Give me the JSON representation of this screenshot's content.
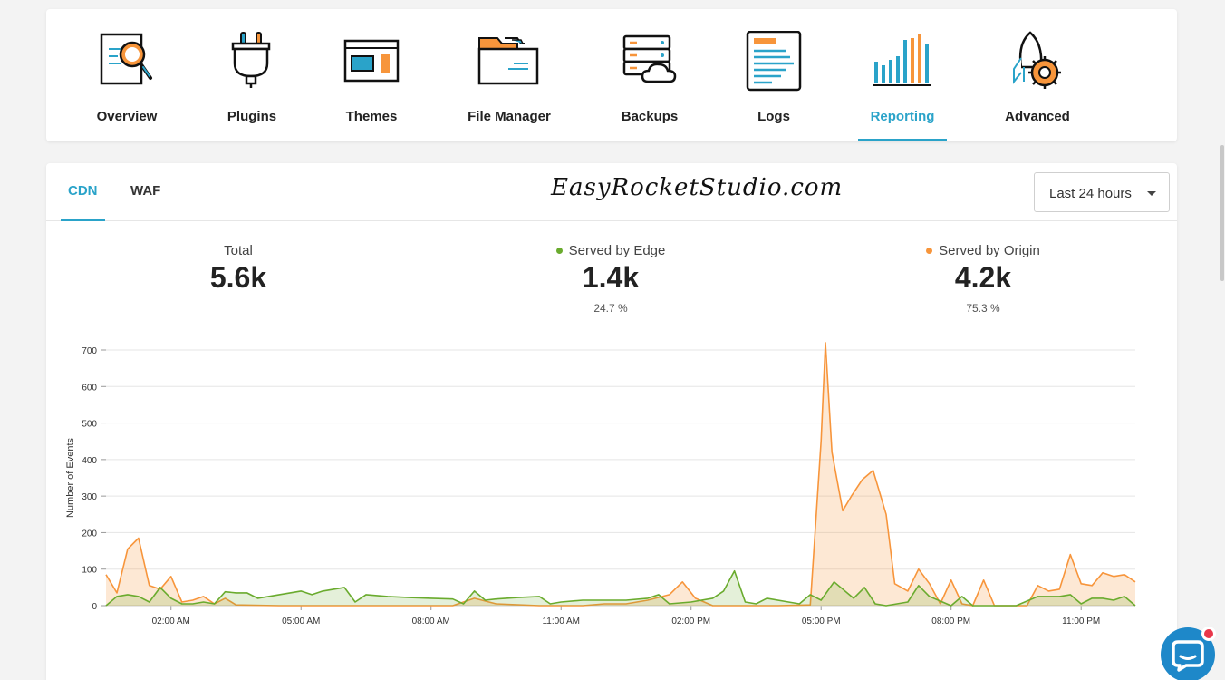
{
  "nav": {
    "items": [
      {
        "label": "Overview",
        "icon": "overview-icon"
      },
      {
        "label": "Plugins",
        "icon": "plugin-icon"
      },
      {
        "label": "Themes",
        "icon": "themes-icon"
      },
      {
        "label": "File Manager",
        "icon": "folder-icon"
      },
      {
        "label": "Backups",
        "icon": "backup-icon"
      },
      {
        "label": "Logs",
        "icon": "logs-icon"
      },
      {
        "label": "Reporting",
        "icon": "reporting-icon"
      },
      {
        "label": "Advanced",
        "icon": "rocket-gear-icon"
      }
    ],
    "active": "Reporting"
  },
  "tabs": [
    {
      "label": "CDN"
    },
    {
      "label": "WAF"
    }
  ],
  "active_tab": "CDN",
  "watermark": "EasyRocketStudio.com",
  "range_select": {
    "value": "Last 24 hours"
  },
  "stats": {
    "total": {
      "label": "Total",
      "value": "5.6k"
    },
    "edge": {
      "label": "Served by Edge",
      "value": "1.4k",
      "pct": "24.7 %"
    },
    "origin": {
      "label": "Served by Origin",
      "value": "4.2k",
      "pct": "75.3 %"
    }
  },
  "colors": {
    "accent": "#2aa3c9",
    "edge": "#6aab2e",
    "origin": "#f7953b"
  },
  "chart_data": {
    "type": "area",
    "ylabel": "Number of Events",
    "ylim": [
      0,
      700
    ],
    "yticks": [
      0,
      100,
      200,
      300,
      400,
      500,
      600,
      700
    ],
    "xlim": [
      0,
      23.75
    ],
    "xticks": [
      {
        "x": 1.5,
        "label": "02:00 AM"
      },
      {
        "x": 4.5,
        "label": "05:00 AM"
      },
      {
        "x": 7.5,
        "label": "08:00 AM"
      },
      {
        "x": 10.5,
        "label": "11:00 AM"
      },
      {
        "x": 13.5,
        "label": "02:00 PM"
      },
      {
        "x": 16.5,
        "label": "05:00 PM"
      },
      {
        "x": 19.5,
        "label": "08:00 PM"
      },
      {
        "x": 22.5,
        "label": "11:00 PM"
      }
    ],
    "grid": true,
    "series": [
      {
        "name": "Served by Origin",
        "color": "#f7953b",
        "points": [
          [
            0,
            85
          ],
          [
            0.25,
            35
          ],
          [
            0.5,
            155
          ],
          [
            0.75,
            185
          ],
          [
            1.0,
            55
          ],
          [
            1.25,
            45
          ],
          [
            1.5,
            80
          ],
          [
            1.75,
            10
          ],
          [
            2.0,
            15
          ],
          [
            2.25,
            25
          ],
          [
            2.5,
            5
          ],
          [
            2.75,
            20
          ],
          [
            3.0,
            2
          ],
          [
            4,
            0
          ],
          [
            5,
            0
          ],
          [
            6,
            0
          ],
          [
            7,
            0
          ],
          [
            8,
            0
          ],
          [
            8.5,
            20
          ],
          [
            9,
            5
          ],
          [
            10,
            0
          ],
          [
            11,
            0
          ],
          [
            11.5,
            5
          ],
          [
            12,
            5
          ],
          [
            12.5,
            15
          ],
          [
            13,
            30
          ],
          [
            13.3,
            65
          ],
          [
            13.6,
            20
          ],
          [
            14,
            0
          ],
          [
            15,
            0
          ],
          [
            15.5,
            0
          ],
          [
            16.25,
            2
          ],
          [
            16.5,
            450
          ],
          [
            16.6,
            720
          ],
          [
            16.75,
            420
          ],
          [
            17.0,
            260
          ],
          [
            17.2,
            300
          ],
          [
            17.45,
            345
          ],
          [
            17.7,
            370
          ],
          [
            18.0,
            250
          ],
          [
            18.2,
            60
          ],
          [
            18.5,
            40
          ],
          [
            18.75,
            100
          ],
          [
            19.0,
            60
          ],
          [
            19.25,
            5
          ],
          [
            19.5,
            70
          ],
          [
            19.75,
            5
          ],
          [
            20.0,
            0
          ],
          [
            20.25,
            70
          ],
          [
            20.5,
            0
          ],
          [
            21,
            0
          ],
          [
            21.25,
            0
          ],
          [
            21.5,
            55
          ],
          [
            21.75,
            40
          ],
          [
            22.0,
            45
          ],
          [
            22.25,
            140
          ],
          [
            22.5,
            60
          ],
          [
            22.75,
            55
          ],
          [
            23.0,
            90
          ],
          [
            23.25,
            80
          ],
          [
            23.5,
            85
          ],
          [
            23.75,
            65
          ]
        ]
      },
      {
        "name": "Served by Edge",
        "color": "#6aab2e",
        "points": [
          [
            0,
            0
          ],
          [
            0.25,
            25
          ],
          [
            0.5,
            30
          ],
          [
            0.75,
            25
          ],
          [
            1.0,
            10
          ],
          [
            1.25,
            50
          ],
          [
            1.5,
            20
          ],
          [
            1.75,
            5
          ],
          [
            2.0,
            5
          ],
          [
            2.25,
            10
          ],
          [
            2.5,
            5
          ],
          [
            2.75,
            38
          ],
          [
            3.0,
            35
          ],
          [
            3.25,
            35
          ],
          [
            3.5,
            20
          ],
          [
            4.0,
            30
          ],
          [
            4.5,
            40
          ],
          [
            4.75,
            30
          ],
          [
            5.0,
            40
          ],
          [
            5.25,
            45
          ],
          [
            5.5,
            50
          ],
          [
            5.75,
            10
          ],
          [
            6.0,
            30
          ],
          [
            6.5,
            25
          ],
          [
            7.0,
            22
          ],
          [
            7.5,
            20
          ],
          [
            8.0,
            18
          ],
          [
            8.25,
            5
          ],
          [
            8.5,
            40
          ],
          [
            8.75,
            15
          ],
          [
            9.0,
            18
          ],
          [
            9.5,
            22
          ],
          [
            10.0,
            25
          ],
          [
            10.25,
            5
          ],
          [
            10.5,
            10
          ],
          [
            11.0,
            15
          ],
          [
            12.0,
            15
          ],
          [
            12.5,
            20
          ],
          [
            12.75,
            30
          ],
          [
            13.0,
            5
          ],
          [
            13.5,
            10
          ],
          [
            14.0,
            20
          ],
          [
            14.25,
            40
          ],
          [
            14.5,
            95
          ],
          [
            14.75,
            10
          ],
          [
            15.0,
            5
          ],
          [
            15.25,
            20
          ],
          [
            15.75,
            10
          ],
          [
            16.0,
            5
          ],
          [
            16.25,
            30
          ],
          [
            16.5,
            15
          ],
          [
            16.8,
            65
          ],
          [
            17.25,
            20
          ],
          [
            17.5,
            50
          ],
          [
            17.75,
            5
          ],
          [
            18.0,
            0
          ],
          [
            18.5,
            10
          ],
          [
            18.75,
            55
          ],
          [
            19.0,
            25
          ],
          [
            19.5,
            0
          ],
          [
            19.75,
            25
          ],
          [
            20.0,
            0
          ],
          [
            21.0,
            0
          ],
          [
            21.5,
            25
          ],
          [
            22.0,
            25
          ],
          [
            22.25,
            30
          ],
          [
            22.5,
            5
          ],
          [
            22.75,
            20
          ],
          [
            23.0,
            20
          ],
          [
            23.25,
            15
          ],
          [
            23.5,
            25
          ],
          [
            23.75,
            0
          ]
        ]
      }
    ]
  },
  "chat": {
    "icon": "chat-icon"
  }
}
